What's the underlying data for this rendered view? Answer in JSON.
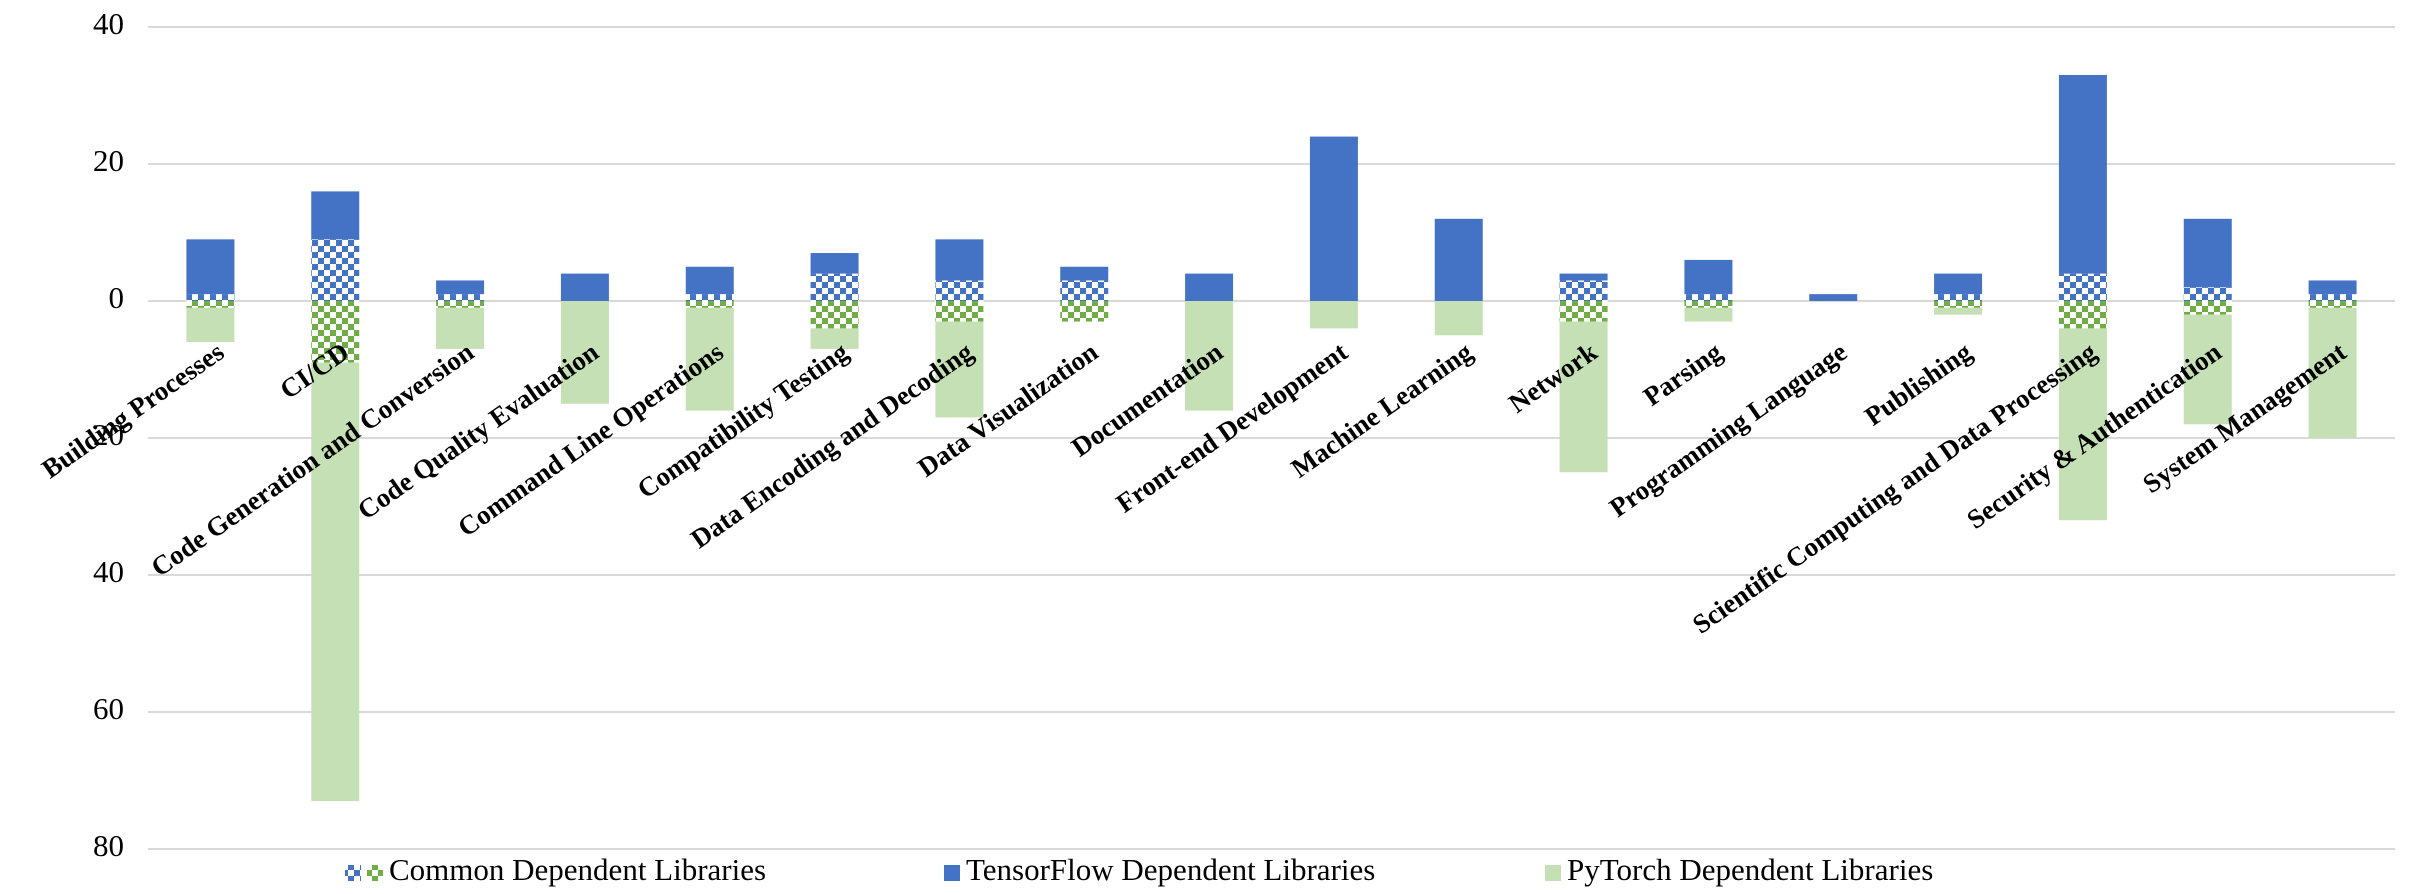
{
  "chart_data": {
    "type": "diverging-stacked-bar",
    "categories": [
      "Building Processes",
      "CI/CD",
      "Code Generation and Conversion",
      "Code Quality Evaluation",
      "Command Line Operations",
      "Compatibility Testing",
      "Data Encoding and Decoding",
      "Data Visualization",
      "Documentation",
      "Front-end Development",
      "Machine Learning",
      "Network",
      "Parsing",
      "Programming Language",
      "Publishing",
      "Scientific Computing and Data Processing",
      "Security & Authentication",
      "System Management"
    ],
    "series": [
      {
        "name": "Common Dependent Libraries",
        "color": "#4472c4",
        "mirror_color": "#70ad47",
        "pattern": "checker",
        "values": [
          1,
          9,
          1,
          0,
          1,
          4,
          3,
          3,
          0,
          0,
          0,
          3,
          1,
          0,
          1,
          4,
          2,
          1
        ]
      },
      {
        "name": "TensorFlow Dependent Libraries",
        "color": "#4472c4",
        "values": [
          8,
          7,
          2,
          4,
          4,
          3,
          6,
          2,
          4,
          24,
          12,
          1,
          5,
          1,
          3,
          29,
          10,
          2
        ]
      },
      {
        "name": "PyTorch Dependent Libraries",
        "color": "#c5e0b4",
        "values": [
          -5,
          -64,
          -6,
          -15,
          -15,
          -3,
          -14,
          0,
          -16,
          -4,
          -5,
          -22,
          -2,
          0,
          -1,
          -28,
          -16,
          -19
        ]
      }
    ],
    "ylim": [
      -80,
      40
    ],
    "yticks": [
      {
        "value": -80,
        "label": "80"
      },
      {
        "value": -60,
        "label": "60"
      },
      {
        "value": -40,
        "label": "40"
      },
      {
        "value": -20,
        "label": "20"
      },
      0,
      20,
      40
    ],
    "grid": true,
    "legend": "bottom"
  }
}
